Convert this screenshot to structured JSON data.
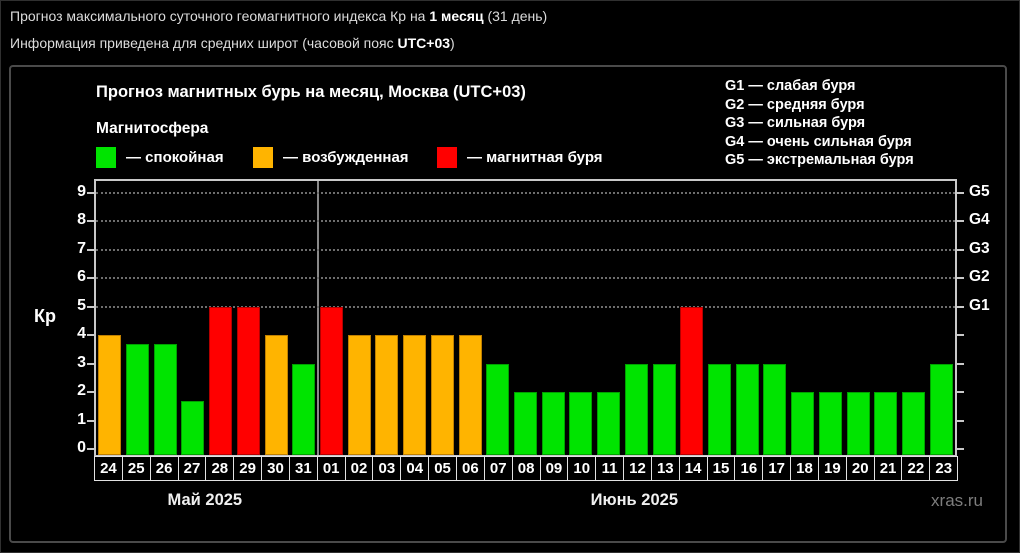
{
  "page": {
    "header_line1": {
      "pre": "Прогноз максимального суточного геомагнитного индекса Кр на ",
      "bold": "1 месяц",
      "post": " (31 день)"
    },
    "header_line2": {
      "pre": "Информация приведена для средних широт (часовой пояс ",
      "bold": "UTC+03",
      "post": ")"
    },
    "watermark": "xras.ru"
  },
  "chart": {
    "title": "Прогноз магнитных бурь на месяц, Москва (UTC+03)",
    "subtitle": "Магнитосфера",
    "ylabel": "Кр"
  },
  "chart_data": {
    "type": "bar",
    "title": "Прогноз магнитных бурь на месяц, Москва (UTC+03)",
    "ylabel": "Кр",
    "ylim": [
      0,
      9
    ],
    "grid": "dotted horizontal lines at Kp 5-9 only",
    "legend_position": "top-left",
    "y_ticks": [
      0,
      1,
      2,
      3,
      4,
      5,
      6,
      7,
      8,
      9
    ],
    "right_axis": [
      {
        "label": "G1",
        "kp": 5
      },
      {
        "label": "G2",
        "kp": 6
      },
      {
        "label": "G3",
        "kp": 7
      },
      {
        "label": "G4",
        "kp": 8
      },
      {
        "label": "G5",
        "kp": 9
      }
    ],
    "g_legend": [
      "G1 — слабая буря",
      "G2 — средняя буря",
      "G3 — сильная буря",
      "G4 — очень сильная буря",
      "G5 — экстремальная буря"
    ],
    "statuses": {
      "quiet": {
        "label": "— спокойная",
        "fill": "#00e400",
        "border": "#00a000"
      },
      "excited": {
        "label": "— возбужденная",
        "fill": "#ffb400",
        "border": "#bf7f00"
      },
      "storm": {
        "label": "— магнитная буря",
        "fill": "#ff0000",
        "border": "#b30000"
      }
    },
    "legend_order": [
      "quiet",
      "excited",
      "storm"
    ],
    "months": [
      {
        "label": "Май 2025",
        "days_count": 8
      },
      {
        "label": "Июнь 2025",
        "days_count": 23
      }
    ],
    "bars": [
      {
        "day": "24",
        "month": "Май 2025",
        "value": 4.0,
        "status": "excited"
      },
      {
        "day": "25",
        "month": "Май 2025",
        "value": 3.7,
        "status": "quiet"
      },
      {
        "day": "26",
        "month": "Май 2025",
        "value": 3.7,
        "status": "quiet"
      },
      {
        "day": "27",
        "month": "Май 2025",
        "value": 1.7,
        "status": "quiet"
      },
      {
        "day": "28",
        "month": "Май 2025",
        "value": 5.0,
        "status": "storm"
      },
      {
        "day": "29",
        "month": "Май 2025",
        "value": 5.0,
        "status": "storm"
      },
      {
        "day": "30",
        "month": "Май 2025",
        "value": 4.0,
        "status": "excited"
      },
      {
        "day": "31",
        "month": "Май 2025",
        "value": 3.0,
        "status": "quiet"
      },
      {
        "day": "01",
        "month": "Июнь 2025",
        "value": 5.0,
        "status": "storm"
      },
      {
        "day": "02",
        "month": "Июнь 2025",
        "value": 4.0,
        "status": "excited"
      },
      {
        "day": "03",
        "month": "Июнь 2025",
        "value": 4.0,
        "status": "excited"
      },
      {
        "day": "04",
        "month": "Июнь 2025",
        "value": 4.0,
        "status": "excited"
      },
      {
        "day": "05",
        "month": "Июнь 2025",
        "value": 4.0,
        "status": "excited"
      },
      {
        "day": "06",
        "month": "Июнь 2025",
        "value": 4.0,
        "status": "excited"
      },
      {
        "day": "07",
        "month": "Июнь 2025",
        "value": 3.0,
        "status": "quiet"
      },
      {
        "day": "08",
        "month": "Июнь 2025",
        "value": 2.0,
        "status": "quiet"
      },
      {
        "day": "09",
        "month": "Июнь 2025",
        "value": 2.0,
        "status": "quiet"
      },
      {
        "day": "10",
        "month": "Июнь 2025",
        "value": 2.0,
        "status": "quiet"
      },
      {
        "day": "11",
        "month": "Июнь 2025",
        "value": 2.0,
        "status": "quiet"
      },
      {
        "day": "12",
        "month": "Июнь 2025",
        "value": 3.0,
        "status": "quiet"
      },
      {
        "day": "13",
        "month": "Июнь 2025",
        "value": 3.0,
        "status": "quiet"
      },
      {
        "day": "14",
        "month": "Июнь 2025",
        "value": 5.0,
        "status": "storm"
      },
      {
        "day": "15",
        "month": "Июнь 2025",
        "value": 3.0,
        "status": "quiet"
      },
      {
        "day": "16",
        "month": "Июнь 2025",
        "value": 3.0,
        "status": "quiet"
      },
      {
        "day": "17",
        "month": "Июнь 2025",
        "value": 3.0,
        "status": "quiet"
      },
      {
        "day": "18",
        "month": "Июнь 2025",
        "value": 2.0,
        "status": "quiet"
      },
      {
        "day": "19",
        "month": "Июнь 2025",
        "value": 2.0,
        "status": "quiet"
      },
      {
        "day": "20",
        "month": "Июнь 2025",
        "value": 2.0,
        "status": "quiet"
      },
      {
        "day": "21",
        "month": "Июнь 2025",
        "value": 2.0,
        "status": "quiet"
      },
      {
        "day": "22",
        "month": "Июнь 2025",
        "value": 2.0,
        "status": "quiet"
      },
      {
        "day": "23",
        "month": "Июнь 2025",
        "value": 3.0,
        "status": "quiet"
      }
    ]
  }
}
